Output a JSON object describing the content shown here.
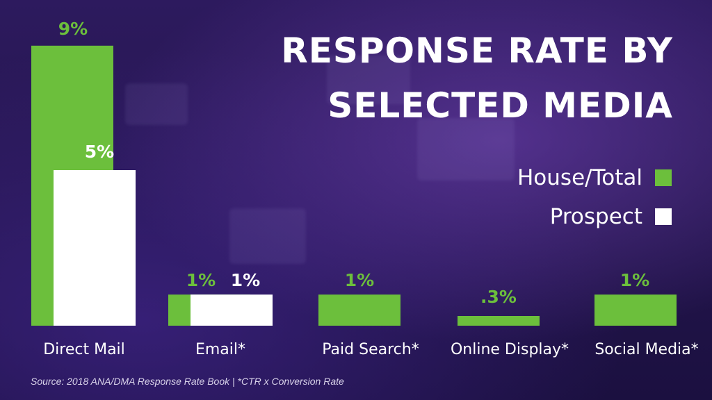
{
  "chart_data": {
    "type": "bar",
    "title_lines": [
      "RESPONSE RATE BY",
      "SELECTED MEDIA"
    ],
    "categories": [
      "Direct Mail",
      "Email*",
      "Paid Search*",
      "Online Display*",
      "Social Media*"
    ],
    "series": [
      {
        "name": "House/Total",
        "color": "#6cbf3c",
        "values": [
          9,
          1,
          1,
          0.3,
          1
        ],
        "labels": [
          "9%",
          "1%",
          "1%",
          ".3%",
          "1%"
        ]
      },
      {
        "name": "Prospect",
        "color": "#ffffff",
        "values": [
          5,
          1,
          null,
          null,
          null
        ],
        "labels": [
          "5%",
          "1%",
          null,
          null,
          null
        ]
      }
    ],
    "grid": false,
    "legend_position": "right",
    "label_color": "#6cbf3c"
  },
  "footnote": "Source: 2018 ANA/DMA Response Rate Book | *CTR x Conversion Rate"
}
